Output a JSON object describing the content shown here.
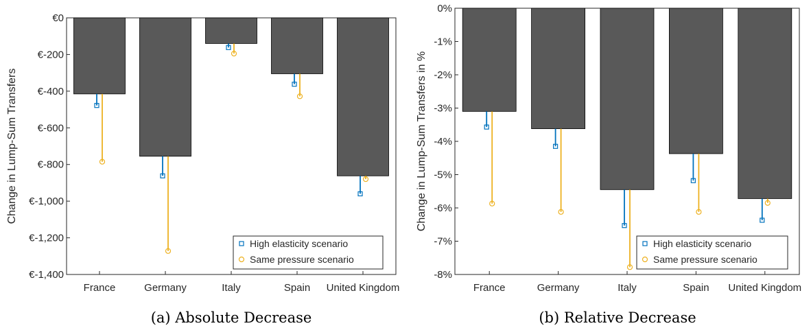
{
  "colors": {
    "bar": "#595959",
    "high_elasticity": "#0072BD",
    "same_pressure": "#EDB120",
    "axis": "#262626"
  },
  "chart_data": [
    {
      "type": "bar",
      "caption": "(a)  Absolute Decrease",
      "categories": [
        "France",
        "Germany",
        "Italy",
        "Spain",
        "United Kingdom"
      ],
      "ylabel": "Change in Lump-Sum Transfers",
      "ylim": [
        -1400,
        0
      ],
      "yticks": [
        0,
        -200,
        -400,
        -600,
        -800,
        -1000,
        -1200,
        -1400
      ],
      "ytick_labels": [
        "€0",
        "€-200",
        "€-400",
        "€-600",
        "€-800",
        "€-1,000",
        "€-1,200",
        "€-1,400"
      ],
      "values": [
        -415,
        -755,
        -140,
        -305,
        -862
      ],
      "series": [
        {
          "name": "High elasticity scenario",
          "marker": "square",
          "values": [
            -478,
            -862,
            -162,
            -362,
            -960
          ]
        },
        {
          "name": "Same pressure scenario",
          "marker": "circle",
          "values": [
            -785,
            -1272,
            -195,
            -428,
            -880
          ]
        }
      ],
      "legend": "bottom-right",
      "grid": false
    },
    {
      "type": "bar",
      "caption": "(b)  Relative Decrease",
      "categories": [
        "France",
        "Germany",
        "Italy",
        "Spain",
        "United Kingdom"
      ],
      "ylabel": "Change in Lump-Sum Transfers in %",
      "ylim": [
        -8,
        0
      ],
      "yticks": [
        0,
        -1,
        -2,
        -3,
        -4,
        -5,
        -6,
        -7,
        -8
      ],
      "ytick_labels": [
        "0%",
        "-1%",
        "-2%",
        "-3%",
        "-4%",
        "-5%",
        "-6%",
        "-7%",
        "-8%"
      ],
      "values": [
        -3.1,
        -3.62,
        -5.45,
        -4.37,
        -5.72
      ],
      "series": [
        {
          "name": "High elasticity scenario",
          "marker": "square",
          "values": [
            -3.57,
            -4.15,
            -6.53,
            -5.18,
            -6.37
          ]
        },
        {
          "name": "Same pressure scenario",
          "marker": "circle",
          "values": [
            -5.87,
            -6.12,
            -7.78,
            -6.12,
            -5.85
          ]
        }
      ],
      "legend": "bottom-right",
      "grid": false
    }
  ]
}
